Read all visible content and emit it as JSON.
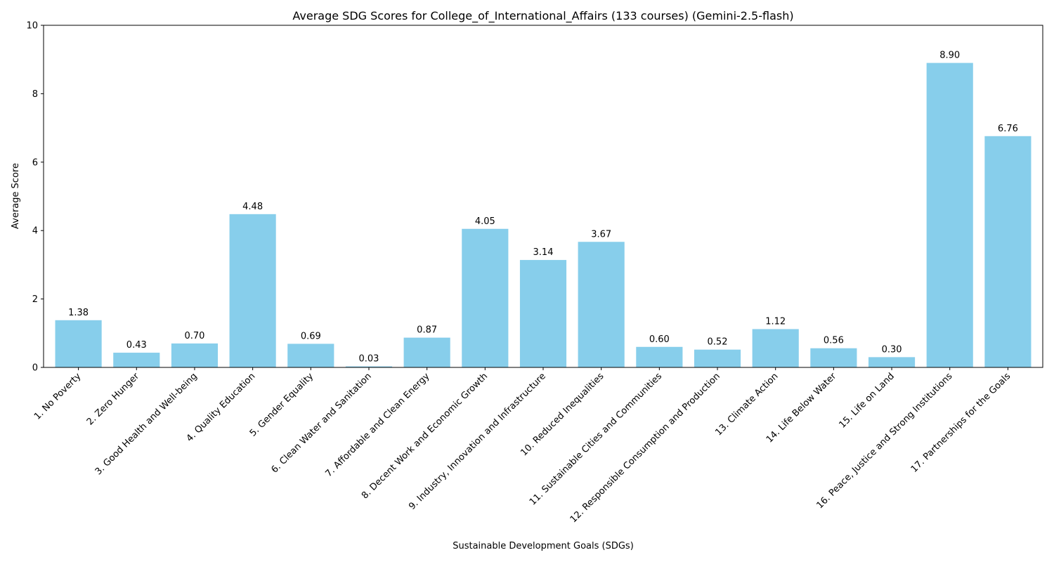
{
  "chart_data": {
    "type": "bar",
    "title": "Average SDG Scores for College_of_International_Affairs (133 courses) (Gemini-2.5-flash)",
    "xlabel": "Sustainable Development Goals (SDGs)",
    "ylabel": "Average Score",
    "ylim": [
      0,
      10
    ],
    "yticks": [
      "0",
      "2",
      "4",
      "6",
      "8",
      "10"
    ],
    "categories": [
      "1. No Poverty",
      "2. Zero Hunger",
      "3. Good Health and Well-being",
      "4. Quality Education",
      "5. Gender Equality",
      "6. Clean Water and Sanitation",
      "7. Affordable and Clean Energy",
      "8. Decent Work and Economic Growth",
      "9. Industry, Innovation and Infrastructure",
      "10. Reduced Inequalities",
      "11. Sustainable Cities and Communities",
      "12. Responsible Consumption and Production",
      "13. Climate Action",
      "14. Life Below Water",
      "15. Life on Land",
      "16. Peace, Justice and Strong Institutions",
      "17. Partnerships for the Goals"
    ],
    "values": [
      1.38,
      0.43,
      0.7,
      4.48,
      0.69,
      0.03,
      0.87,
      4.05,
      3.14,
      3.67,
      0.6,
      0.52,
      1.12,
      0.56,
      0.3,
      8.9,
      6.76
    ],
    "value_labels": [
      "1.38",
      "0.43",
      "0.70",
      "4.48",
      "0.69",
      "0.03",
      "0.87",
      "4.05",
      "3.14",
      "3.67",
      "0.60",
      "0.52",
      "1.12",
      "0.56",
      "0.30",
      "8.90",
      "6.76"
    ],
    "bar_color": "#87CEEB",
    "grid": false,
    "legend": "none"
  }
}
